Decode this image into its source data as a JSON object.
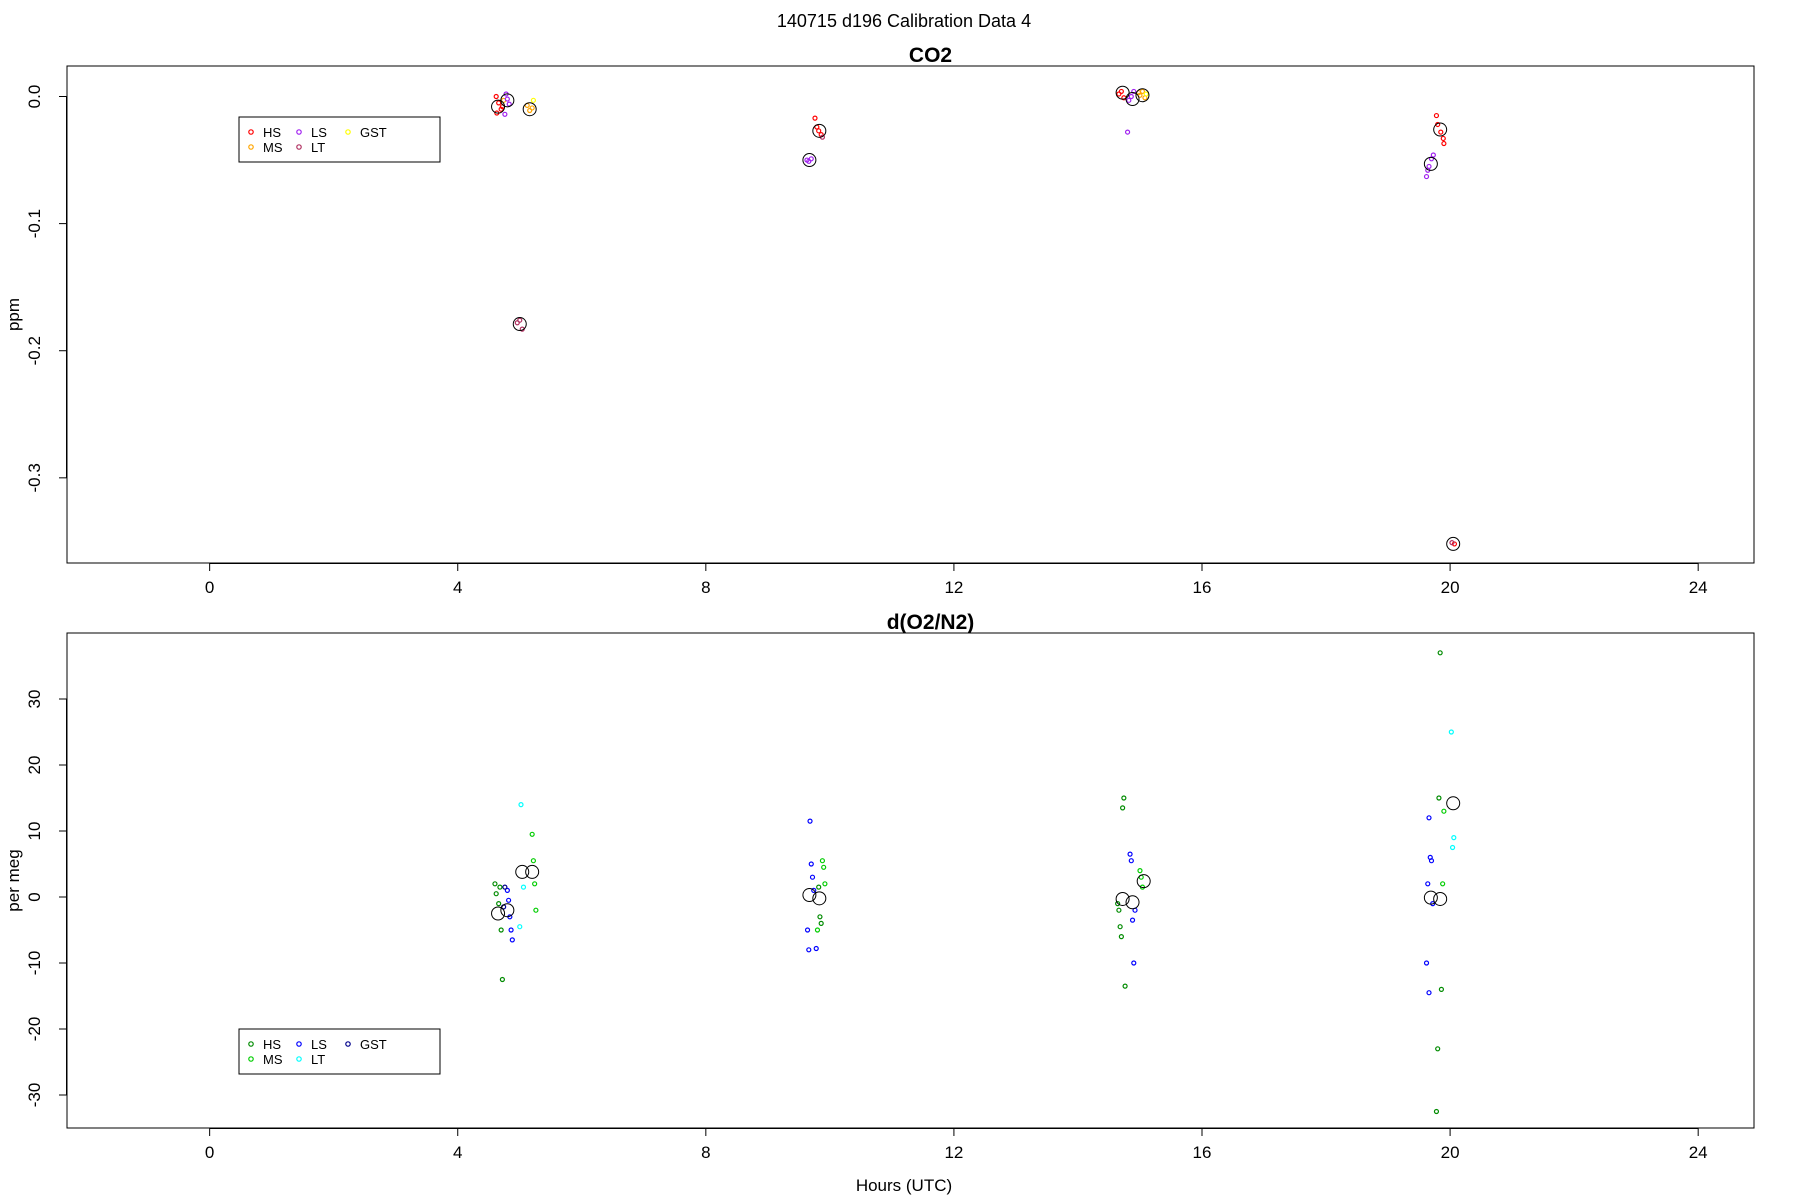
{
  "main_title": "140715   d196   Calibration Data 4",
  "chart_data": [
    {
      "type": "scatter",
      "title": "CO2",
      "xlabel": "",
      "ylabel": "ppm",
      "xlim": [
        -2.3,
        24.9
      ],
      "ylim": [
        -0.367,
        0.024
      ],
      "xticks": [
        "0",
        "4",
        "8",
        "12",
        "16",
        "20",
        "24"
      ],
      "yticks": [
        "0.0",
        "-0.1",
        "-0.2",
        "-0.3"
      ],
      "grid": false,
      "legend_position": "top-left",
      "legend": [
        {
          "name": "HS",
          "color": "#ff0000"
        },
        {
          "name": "MS",
          "color": "#ffa500"
        },
        {
          "name": "LS",
          "color": "#a020f0"
        },
        {
          "name": "LT",
          "color": "#b03060"
        },
        {
          "name": "GST",
          "color": "#ffff00"
        }
      ],
      "series": [
        {
          "name": "HS",
          "color": "#ff0000",
          "points": [
            [
              4.62,
              0.0
            ],
            [
              4.66,
              -0.005
            ],
            [
              4.7,
              -0.01
            ],
            [
              4.63,
              -0.013
            ],
            [
              4.72,
              -0.008
            ],
            [
              9.82,
              -0.027
            ],
            [
              9.86,
              -0.03
            ],
            [
              9.79,
              -0.024
            ],
            [
              9.76,
              -0.017
            ],
            [
              14.66,
              0.002
            ],
            [
              14.7,
              0.004
            ],
            [
              14.74,
              -0.001
            ],
            [
              19.8,
              -0.022
            ],
            [
              19.85,
              -0.028
            ],
            [
              19.89,
              -0.033
            ],
            [
              19.78,
              -0.015
            ],
            [
              19.9,
              -0.037
            ],
            [
              20.07,
              -0.352
            ]
          ]
        },
        {
          "name": "MS",
          "color": "#ffa500",
          "points": [
            [
              4.74,
              -0.003
            ],
            [
              5.12,
              -0.007
            ],
            [
              5.16,
              -0.011
            ],
            [
              5.2,
              -0.009
            ],
            [
              15.0,
              0.001
            ],
            [
              15.04,
              0.004
            ],
            [
              15.08,
              -0.001
            ],
            [
              14.98,
              0.003
            ]
          ]
        },
        {
          "name": "LS",
          "color": "#a020f0",
          "points": [
            [
              4.8,
              -0.002
            ],
            [
              4.83,
              -0.006
            ],
            [
              4.76,
              -0.014
            ],
            [
              4.78,
              0.002
            ],
            [
              9.63,
              -0.05
            ],
            [
              9.66,
              -0.051
            ],
            [
              9.7,
              -0.049
            ],
            [
              14.82,
              -0.003
            ],
            [
              14.86,
              0.0
            ],
            [
              14.9,
              0.004
            ],
            [
              14.8,
              -0.028
            ],
            [
              19.66,
              -0.055
            ],
            [
              19.7,
              -0.049
            ],
            [
              19.73,
              -0.046
            ],
            [
              19.62,
              -0.063
            ],
            [
              19.64,
              -0.058
            ]
          ]
        },
        {
          "name": "LT",
          "color": "#b03060",
          "points": [
            [
              5.0,
              -0.176
            ],
            [
              5.04,
              -0.183
            ],
            [
              4.96,
              -0.178
            ],
            [
              9.88,
              -0.032
            ],
            [
              20.03,
              -0.351
            ]
          ]
        },
        {
          "name": "GST",
          "color": "#ffff00",
          "points": [
            [
              5.22,
              -0.003
            ],
            [
              15.1,
              0.002
            ]
          ]
        },
        {
          "name": "",
          "color": "#000000",
          "mean": true,
          "points": [
            [
              4.65,
              -0.008
            ],
            [
              4.8,
              -0.003
            ],
            [
              5.0,
              -0.179
            ],
            [
              5.16,
              -0.01
            ],
            [
              9.67,
              -0.05
            ],
            [
              9.83,
              -0.027
            ],
            [
              14.72,
              0.003
            ],
            [
              14.88,
              -0.002
            ],
            [
              15.04,
              0.001
            ],
            [
              19.69,
              -0.053
            ],
            [
              19.84,
              -0.026
            ],
            [
              20.05,
              -0.352
            ]
          ]
        }
      ]
    },
    {
      "type": "scatter",
      "title": "d(O2/N2)",
      "xlabel": "Hours (UTC)",
      "ylabel": "per meg",
      "xlim": [
        -2.3,
        24.9
      ],
      "ylim": [
        -35.0,
        40.0
      ],
      "xticks": [
        "0",
        "4",
        "8",
        "12",
        "16",
        "20",
        "24"
      ],
      "yticks": [
        "30",
        "20",
        "10",
        "0",
        "-10",
        "-20",
        "-30"
      ],
      "grid": false,
      "legend_position": "bottom-left",
      "legend": [
        {
          "name": "HS",
          "color": "#008b00"
        },
        {
          "name": "MS",
          "color": "#00cd00"
        },
        {
          "name": "LS",
          "color": "#0000ff"
        },
        {
          "name": "LT",
          "color": "#00ffff"
        },
        {
          "name": "GST",
          "color": "#00008b"
        }
      ],
      "series": [
        {
          "name": "HS",
          "color": "#008b00",
          "points": [
            [
              4.6,
              2.0
            ],
            [
              4.62,
              0.5
            ],
            [
              4.66,
              -1.0
            ],
            [
              4.68,
              1.5
            ],
            [
              4.7,
              -5.0
            ],
            [
              4.72,
              -12.5
            ],
            [
              9.84,
              -3.0
            ],
            [
              9.86,
              -4.0
            ],
            [
              9.82,
              1.5
            ],
            [
              14.66,
              -2.0
            ],
            [
              14.68,
              -4.5
            ],
            [
              14.7,
              -6.0
            ],
            [
              14.72,
              13.5
            ],
            [
              14.74,
              15.0
            ],
            [
              14.76,
              -13.5
            ],
            [
              14.64,
              -1.0
            ],
            [
              19.82,
              15.0
            ],
            [
              19.86,
              -14.0
            ],
            [
              19.8,
              -23.0
            ],
            [
              19.78,
              -32.5
            ],
            [
              19.84,
              37.0
            ]
          ]
        },
        {
          "name": "MS",
          "color": "#00cd00",
          "points": [
            [
              5.2,
              9.5
            ],
            [
              5.22,
              5.5
            ],
            [
              5.24,
              2.0
            ],
            [
              5.26,
              -2.0
            ],
            [
              9.88,
              5.5
            ],
            [
              9.9,
              4.5
            ],
            [
              9.92,
              2.0
            ],
            [
              9.8,
              -5.0
            ],
            [
              15.0,
              4.0
            ],
            [
              15.04,
              1.5
            ],
            [
              15.02,
              3.0
            ],
            [
              19.9,
              13.0
            ],
            [
              19.88,
              2.0
            ]
          ]
        },
        {
          "name": "LS",
          "color": "#0000ff",
          "points": [
            [
              4.8,
              1.0
            ],
            [
              4.82,
              -0.5
            ],
            [
              4.84,
              -3.0
            ],
            [
              4.86,
              -5.0
            ],
            [
              4.88,
              -6.5
            ],
            [
              9.68,
              11.5
            ],
            [
              9.7,
              5.0
            ],
            [
              9.72,
              3.0
            ],
            [
              9.74,
              1.0
            ],
            [
              9.64,
              -5.0
            ],
            [
              9.66,
              -8.0
            ],
            [
              9.78,
              -7.8
            ],
            [
              14.84,
              6.5
            ],
            [
              14.86,
              5.5
            ],
            [
              14.88,
              -3.5
            ],
            [
              14.9,
              -10.0
            ],
            [
              14.92,
              -2.0
            ],
            [
              19.66,
              12.0
            ],
            [
              19.68,
              6.0
            ],
            [
              19.7,
              5.5
            ],
            [
              19.64,
              2.0
            ],
            [
              19.62,
              -10.0
            ],
            [
              19.66,
              -14.5
            ],
            [
              19.72,
              -1.0
            ]
          ]
        },
        {
          "name": "LT",
          "color": "#00ffff",
          "points": [
            [
              5.02,
              14.0
            ],
            [
              5.06,
              1.5
            ],
            [
              5.0,
              -4.5
            ],
            [
              20.02,
              25.0
            ],
            [
              20.06,
              9.0
            ],
            [
              20.04,
              7.5
            ]
          ]
        },
        {
          "name": "GST",
          "color": "#00008b",
          "points": [
            [
              4.76,
              1.5
            ],
            [
              4.74,
              -1.5
            ]
          ]
        },
        {
          "name": "",
          "color": "#000000",
          "mean": true,
          "points": [
            [
              4.65,
              -2.5
            ],
            [
              4.8,
              -2.0
            ],
            [
              5.04,
              3.8
            ],
            [
              5.2,
              3.8
            ],
            [
              9.67,
              0.3
            ],
            [
              9.83,
              -0.2
            ],
            [
              14.72,
              -0.3
            ],
            [
              14.88,
              -0.8
            ],
            [
              15.06,
              2.4
            ],
            [
              19.69,
              -0.1
            ],
            [
              19.84,
              -0.3
            ],
            [
              20.05,
              14.2
            ]
          ]
        }
      ]
    }
  ]
}
